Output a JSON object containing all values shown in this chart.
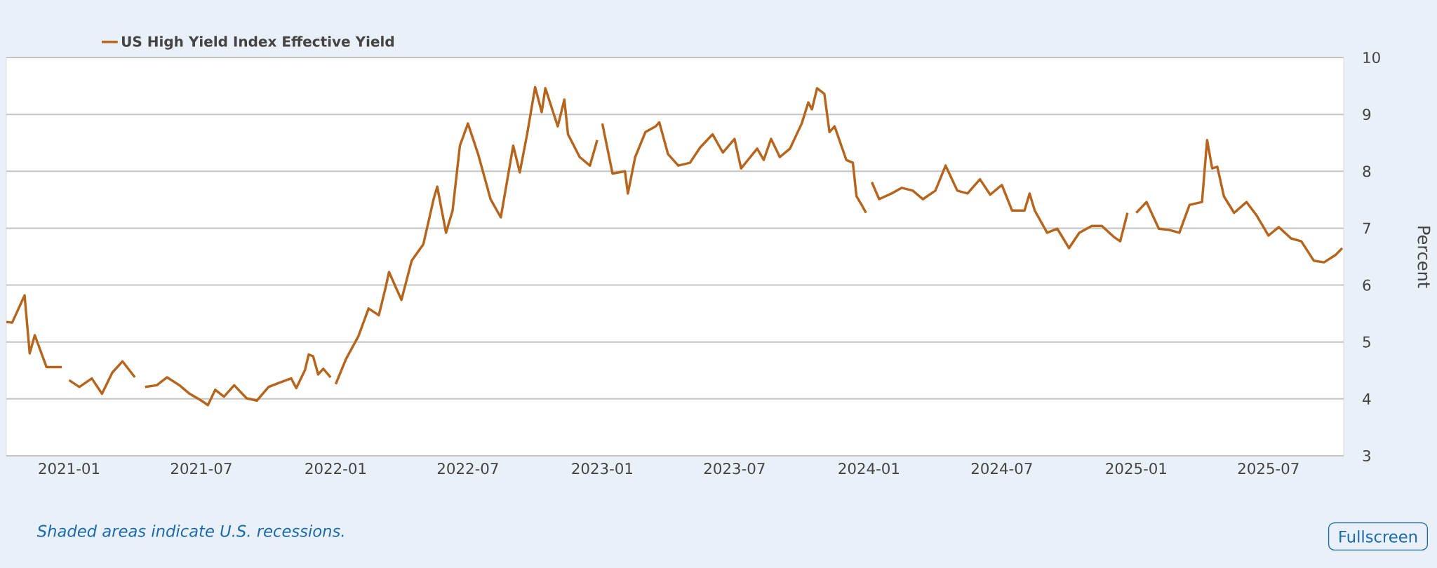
{
  "chart_data": {
    "type": "line",
    "ylabel": "Percent",
    "annotations": [
      "Shaded areas indicate U.S. recessions.",
      "Fullscreen"
    ],
    "xlim": [
      "2020-10-07",
      "2025-10-12"
    ],
    "xticks": [
      "2021-01",
      "2021-07",
      "2022-01",
      "2022-07",
      "2023-01",
      "2023-07",
      "2024-01",
      "2024-07",
      "2025-01",
      "2025-07"
    ],
    "ylim": [
      3,
      10
    ],
    "yticks": [
      3,
      4,
      5,
      6,
      7,
      8,
      9,
      10
    ],
    "grid": "y",
    "legend": "top left",
    "series": [
      {
        "name": "US High Yield Index Effective Yield",
        "color": "#b5651d",
        "x": [
          "2020-10-07",
          "2020-10-15",
          "2020-11-01",
          "2020-11-08",
          "2020-11-15",
          "2020-12-01",
          "2020-12-15",
          "2020-12-22",
          "2020-12-27",
          "2021-01-01",
          "2021-01-15",
          "2021-02-01",
          "2021-02-15",
          "2021-03-01",
          "2021-03-15",
          "2021-04-01",
          "2021-04-08",
          "2021-04-15",
          "2021-05-01",
          "2021-05-15",
          "2021-06-01",
          "2021-06-15",
          "2021-07-01",
          "2021-07-10",
          "2021-07-20",
          "2021-08-01",
          "2021-08-15",
          "2021-09-01",
          "2021-09-15",
          "2021-10-01",
          "2021-10-15",
          "2021-11-01",
          "2021-11-08",
          "2021-11-20",
          "2021-11-25",
          "2021-12-01",
          "2021-12-08",
          "2021-12-15",
          "2021-12-25",
          "2021-12-28",
          "2022-01-01",
          "2022-01-15",
          "2022-02-01",
          "2022-02-15",
          "2022-03-01",
          "2022-03-10",
          "2022-03-15",
          "2022-03-25",
          "2022-04-01",
          "2022-04-15",
          "2022-05-01",
          "2022-05-15",
          "2022-05-20",
          "2022-06-01",
          "2022-06-10",
          "2022-06-20",
          "2022-07-01",
          "2022-07-15",
          "2022-08-01",
          "2022-08-15",
          "2022-09-01",
          "2022-09-10",
          "2022-09-20",
          "2022-10-01",
          "2022-10-10",
          "2022-10-15",
          "2022-11-01",
          "2022-11-10",
          "2022-11-15",
          "2022-12-01",
          "2022-12-15",
          "2022-12-25",
          "2022-12-28",
          "2023-01-01",
          "2023-01-15",
          "2023-02-01",
          "2023-02-05",
          "2023-02-15",
          "2023-03-01",
          "2023-03-15",
          "2023-03-20",
          "2023-04-01",
          "2023-04-15",
          "2023-05-01",
          "2023-05-15",
          "2023-06-01",
          "2023-06-15",
          "2023-07-01",
          "2023-07-10",
          "2023-08-01",
          "2023-08-10",
          "2023-08-20",
          "2023-09-01",
          "2023-09-15",
          "2023-10-01",
          "2023-10-10",
          "2023-10-15",
          "2023-10-22",
          "2023-11-01",
          "2023-11-08",
          "2023-11-15",
          "2023-12-01",
          "2023-12-10",
          "2023-12-15",
          "2023-12-22",
          "2023-12-28",
          "2024-01-01",
          "2024-01-05",
          "2024-01-15",
          "2024-02-01",
          "2024-02-15",
          "2024-03-01",
          "2024-03-15",
          "2024-04-01",
          "2024-04-15",
          "2024-05-01",
          "2024-05-15",
          "2024-06-01",
          "2024-06-15",
          "2024-07-01",
          "2024-07-15",
          "2024-08-01",
          "2024-08-08",
          "2024-08-15",
          "2024-09-01",
          "2024-09-15",
          "2024-10-01",
          "2024-10-15",
          "2024-11-01",
          "2024-11-15",
          "2024-12-01",
          "2024-12-10",
          "2024-12-20",
          "2024-12-26",
          "2025-01-01",
          "2025-01-15",
          "2025-02-01",
          "2025-02-15",
          "2025-03-01",
          "2025-03-15",
          "2025-04-01",
          "2025-04-08",
          "2025-04-15",
          "2025-04-22",
          "2025-05-01",
          "2025-05-15",
          "2025-06-01",
          "2025-06-15",
          "2025-07-01",
          "2025-07-15",
          "2025-08-01",
          "2025-08-15",
          "2025-09-01",
          "2025-09-15",
          "2025-10-01",
          "2025-10-10"
        ],
        "values": [
          5.35,
          5.34,
          5.82,
          4.8,
          5.12,
          4.56,
          4.56,
          4.56,
          null,
          4.33,
          4.21,
          4.36,
          4.09,
          4.46,
          4.66,
          4.38,
          null,
          4.21,
          4.24,
          4.38,
          4.24,
          4.09,
          3.97,
          3.89,
          4.16,
          4.04,
          4.24,
          4.01,
          3.97,
          4.21,
          4.28,
          4.36,
          4.19,
          4.51,
          4.78,
          4.75,
          4.43,
          4.53,
          4.38,
          null,
          4.26,
          4.7,
          5.1,
          5.59,
          5.47,
          5.94,
          6.23,
          5.94,
          5.74,
          6.43,
          6.72,
          7.51,
          7.73,
          6.92,
          7.31,
          8.45,
          8.84,
          8.3,
          7.51,
          7.19,
          8.45,
          7.98,
          8.65,
          9.48,
          9.04,
          9.46,
          8.79,
          9.26,
          8.65,
          8.25,
          8.1,
          8.55,
          null,
          8.84,
          7.96,
          8.0,
          7.61,
          8.25,
          8.69,
          8.79,
          8.86,
          8.3,
          8.1,
          8.15,
          8.42,
          8.65,
          8.33,
          8.57,
          8.05,
          8.4,
          8.2,
          8.57,
          8.25,
          8.4,
          8.84,
          9.21,
          9.09,
          9.46,
          9.36,
          8.69,
          8.79,
          8.2,
          8.15,
          7.56,
          7.41,
          7.27,
          null,
          7.81,
          7.51,
          7.61,
          7.71,
          7.66,
          7.51,
          7.66,
          8.1,
          7.66,
          7.61,
          7.86,
          7.59,
          7.76,
          7.31,
          7.31,
          7.61,
          7.31,
          6.92,
          6.99,
          6.65,
          6.92,
          7.04,
          7.04,
          6.85,
          6.77,
          7.27,
          null,
          7.27,
          7.46,
          6.99,
          6.97,
          6.92,
          7.41,
          7.46,
          8.55,
          8.05,
          8.08,
          7.56,
          7.27,
          7.46,
          7.22,
          6.87,
          7.02,
          6.82,
          6.77,
          6.43,
          6.4,
          6.53,
          6.65
        ]
      }
    ]
  }
}
